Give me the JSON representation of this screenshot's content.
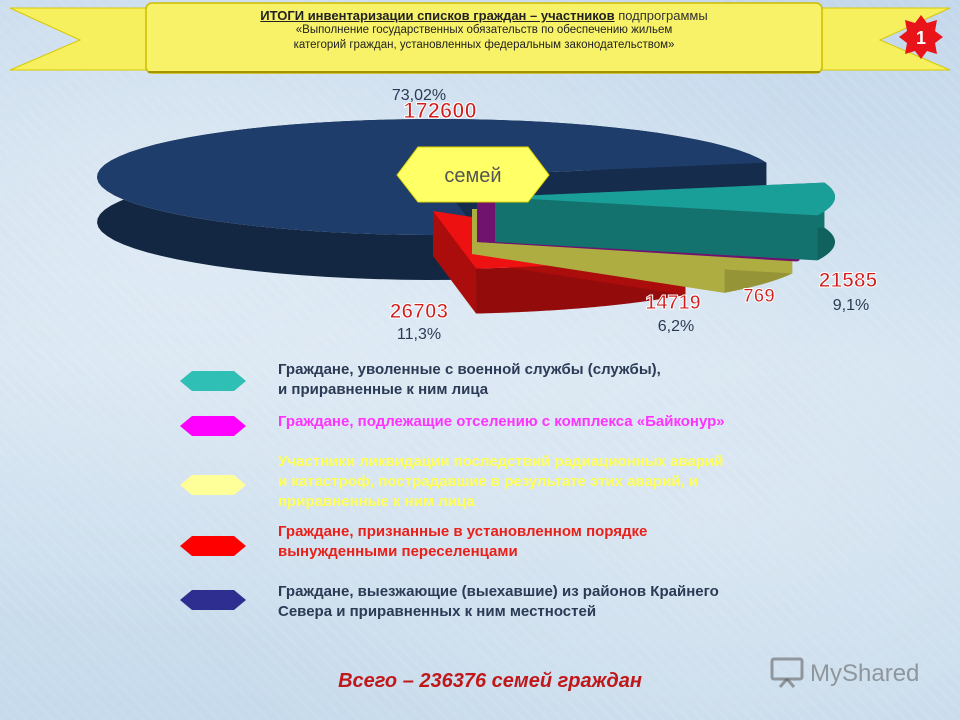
{
  "header": {
    "title_bold": "ИТОГИ инвентаризации списков граждан – участников",
    "title_rest": " подпрограммы",
    "subtitle_line1": "«Выполнение государственных обязательств по обеспечению жильем",
    "subtitle_line2": "категорий граждан, установленных федеральным законодательством»",
    "slide_number": "1"
  },
  "chart_data": {
    "type": "pie",
    "center_label": "семей",
    "slices": [
      {
        "label": "Граждане, выезжающие (выехавшие) из районов Крайнего Севера и приравненных к ним местностей",
        "value": 172600,
        "value_label": "172600",
        "percent_label": "73,02%",
        "color": "#1f3d6a"
      },
      {
        "label": "Граждане, уволенные с военной службы (службы), и приравненные к ним лица",
        "value": 21585,
        "value_label": "21585",
        "percent_label": "9,1%",
        "color": "#1a9e98"
      },
      {
        "label": "Граждане, подлежащие отселению с комплекса «Байконур»",
        "value": 769,
        "value_label": "769",
        "percent_label": "",
        "color": "#9a1a9a"
      },
      {
        "label": "Участники ликвидации последствий радиационных аварий и катастроф, пострадавшие в результате этих аварий, и приравненные к ним лица",
        "value": 14719,
        "value_label": "14719",
        "percent_label": "6,2%",
        "color": "#f0f05a"
      },
      {
        "label": "Граждане, признанные в установленном порядке вынужденными переселенцами",
        "value": 26703,
        "value_label": "26703",
        "percent_label": "11,3%",
        "color": "#ee1111"
      }
    ]
  },
  "legend": [
    {
      "line1": "Граждане, уволенные с военной службы (службы),",
      "line2": "и приравненные к ним лица",
      "line3": "",
      "color": "#2fbfb5",
      "text_color": "#2b3a55"
    },
    {
      "line1": "Граждане, подлежащие отселению с комплекса «Байконур»",
      "line2": "",
      "line3": "",
      "color": "#ff00ff",
      "text_color": "#ff33ff"
    },
    {
      "line1": "Участники ликвидации последствий радиационных аварий",
      "line2": " и катастроф, пострадавшие в результате этих аварий, и",
      "line3": "приравненные к ним лица",
      "color": "#ffff99",
      "text_color": "#ffff55"
    },
    {
      "line1": "Граждане, признанные в установленном порядке",
      "line2": "вынужденными переселенцами",
      "line3": "",
      "color": "#ff0000",
      "text_color": "#e8201a"
    },
    {
      "line1": "Граждане, выезжающие (выехавшие) из районов Крайнего",
      "line2": "Севера и приравненных к ним местностей",
      "line3": "",
      "color": "#2e2e90",
      "text_color": "#2b3a55"
    }
  ],
  "footer": {
    "total": "Всего – 236376 семей граждан",
    "watermark": "MyShared"
  }
}
